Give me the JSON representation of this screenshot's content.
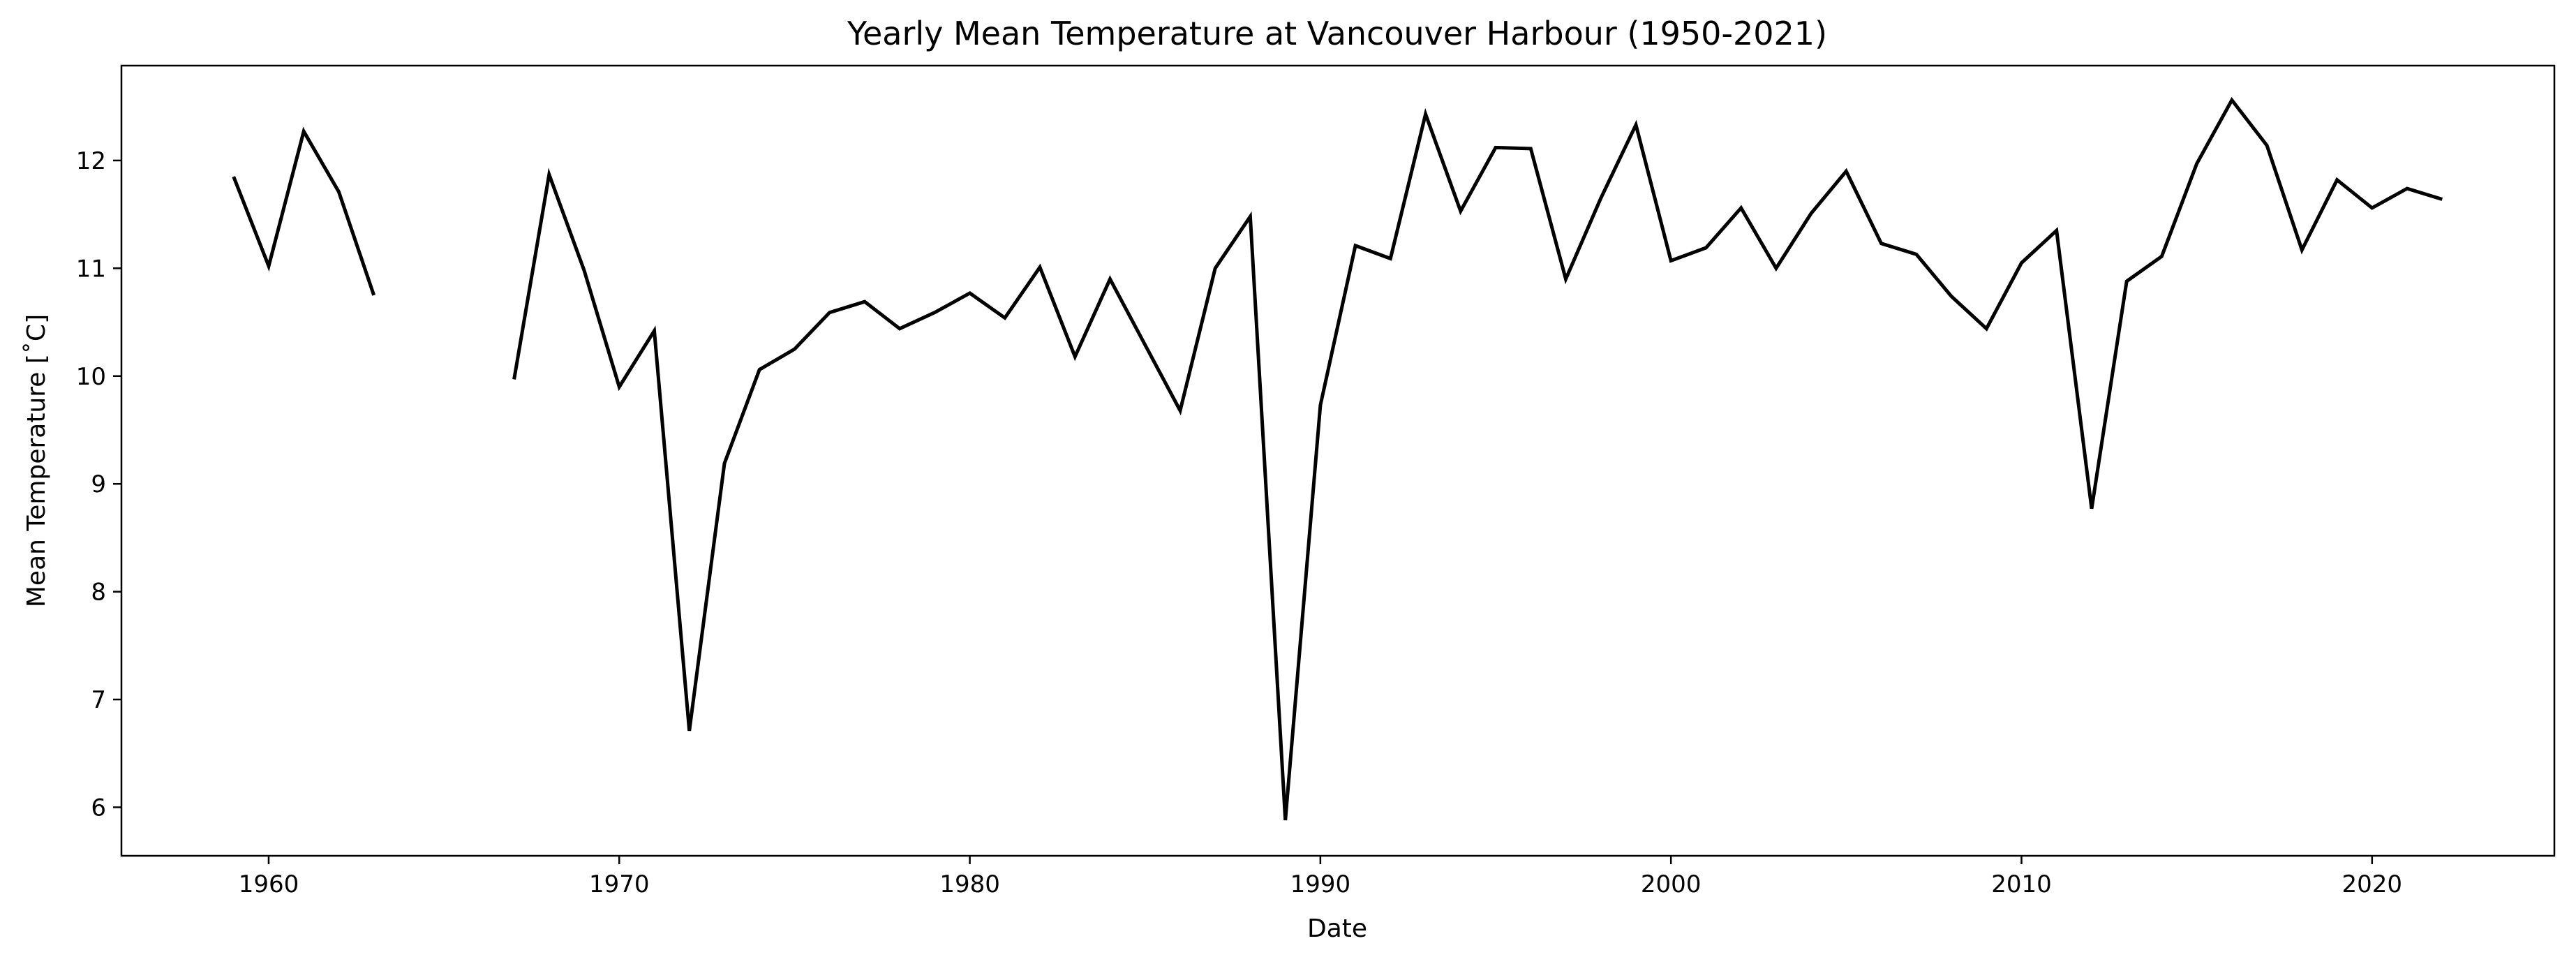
{
  "chart_data": {
    "type": "line",
    "title": "Yearly Mean Temperature at Vancouver Harbour (1950-2021)",
    "xlabel": "Date",
    "ylabel": "Mean Temperature [˚C]",
    "xlim": [
      1955.8,
      2025.2
    ],
    "ylim": [
      5.55,
      12.88
    ],
    "x_ticks": [
      1960,
      1970,
      1980,
      1990,
      2000,
      2010,
      2020
    ],
    "y_ticks": [
      6,
      7,
      8,
      9,
      10,
      11,
      12
    ],
    "grid": false,
    "line_color": "#000000",
    "series": [
      {
        "x": [
          1959,
          1960,
          1961,
          1962,
          1963,
          1964,
          1965,
          1966,
          1967,
          1968,
          1969,
          1970,
          1971,
          1972,
          1973,
          1974,
          1975,
          1976,
          1977,
          1978,
          1979,
          1980,
          1981,
          1982,
          1983,
          1984,
          1985,
          1986,
          1987,
          1988,
          1989,
          1990,
          1991,
          1992,
          1993,
          1994,
          1995,
          1996,
          1997,
          1998,
          1999,
          2000,
          2001,
          2002,
          2003,
          2004,
          2005,
          2006,
          2007,
          2008,
          2009,
          2010,
          2011,
          2012,
          2013,
          2014,
          2015,
          2016,
          2017,
          2018,
          2019,
          2020,
          2021,
          2022
        ],
        "y": [
          11.85,
          11.02,
          12.27,
          11.71,
          10.75,
          null,
          null,
          null,
          9.97,
          11.87,
          10.98,
          9.9,
          10.42,
          6.71,
          9.19,
          10.06,
          10.25,
          10.59,
          10.69,
          10.44,
          10.59,
          10.77,
          10.54,
          11.01,
          10.18,
          10.9,
          10.29,
          9.68,
          11.0,
          11.48,
          5.88,
          9.73,
          11.21,
          11.09,
          12.43,
          11.53,
          12.12,
          12.11,
          10.9,
          11.65,
          12.33,
          11.07,
          11.19,
          11.56,
          11.0,
          11.51,
          11.9,
          11.23,
          11.13,
          10.74,
          10.44,
          11.05,
          11.35,
          8.77,
          10.88,
          11.11,
          11.97,
          12.56,
          12.14,
          11.17,
          11.82,
          11.56,
          11.74,
          11.64
        ]
      }
    ]
  }
}
